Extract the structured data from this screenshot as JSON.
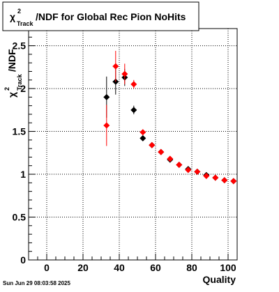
{
  "chart_data": {
    "type": "scatter",
    "title": {
      "symbol": "χ",
      "sup": "2",
      "sub": "Track",
      "text": "/NDF for Global Rec Pion NoHits"
    },
    "ylabel": {
      "symbol": "χ",
      "sup": "2",
      "sub": "Track",
      "text": "/NDF"
    },
    "xlabel": "Quality",
    "xlim": [
      -10,
      105
    ],
    "ylim": [
      0,
      2.7
    ],
    "x_ticks": [
      0,
      20,
      40,
      60,
      80,
      100
    ],
    "x_tick_labels": [
      "0",
      "20",
      "40",
      "60",
      "80",
      "100"
    ],
    "y_ticks": [
      0,
      0.5,
      1,
      1.5,
      2,
      2.5
    ],
    "y_tick_labels": [
      "0",
      "0.5",
      "1",
      "1.5",
      "2",
      "2.5"
    ],
    "grid": true,
    "series": [
      {
        "color": "#000000",
        "points": [
          {
            "x": 33,
            "y": 1.9,
            "err": 0.24
          },
          {
            "x": 38,
            "y": 2.08,
            "err": 0.15
          },
          {
            "x": 43,
            "y": 2.13,
            "err": 0.1
          },
          {
            "x": 48,
            "y": 1.75,
            "err": 0.05
          },
          {
            "x": 53,
            "y": 1.42,
            "err": 0.03
          },
          {
            "x": 58,
            "y": 1.34,
            "err": 0.02
          },
          {
            "x": 63,
            "y": 1.26,
            "err": 0.02
          },
          {
            "x": 68,
            "y": 1.17,
            "err": 0.02
          },
          {
            "x": 73,
            "y": 1.11,
            "err": 0.02
          },
          {
            "x": 78,
            "y": 1.06,
            "err": 0.01
          },
          {
            "x": 83,
            "y": 1.03,
            "err": 0.01
          },
          {
            "x": 88,
            "y": 0.99,
            "err": 0.01
          },
          {
            "x": 93,
            "y": 0.96,
            "err": 0.01
          },
          {
            "x": 98,
            "y": 0.93,
            "err": 0.01
          },
          {
            "x": 103,
            "y": 0.92,
            "err": 0.01
          }
        ]
      },
      {
        "color": "#ff0000",
        "points": [
          {
            "x": 33,
            "y": 1.57,
            "err": 0.24
          },
          {
            "x": 38,
            "y": 2.26,
            "err": 0.18
          },
          {
            "x": 43,
            "y": 2.17,
            "err": 0.12
          },
          {
            "x": 48,
            "y": 2.05,
            "err": 0.05
          },
          {
            "x": 53,
            "y": 1.49,
            "err": 0.03
          },
          {
            "x": 58,
            "y": 1.34,
            "err": 0.02
          },
          {
            "x": 63,
            "y": 1.26,
            "err": 0.02
          },
          {
            "x": 68,
            "y": 1.18,
            "err": 0.02
          },
          {
            "x": 73,
            "y": 1.11,
            "err": 0.02
          },
          {
            "x": 78,
            "y": 1.05,
            "err": 0.01
          },
          {
            "x": 83,
            "y": 1.03,
            "err": 0.01
          },
          {
            "x": 88,
            "y": 0.98,
            "err": 0.01
          },
          {
            "x": 93,
            "y": 0.96,
            "err": 0.01
          },
          {
            "x": 98,
            "y": 0.93,
            "err": 0.01
          },
          {
            "x": 103,
            "y": 0.92,
            "err": 0.01
          }
        ]
      }
    ]
  },
  "footer": {
    "timestamp": "Sun Jun 29 08:03:58 2025"
  }
}
